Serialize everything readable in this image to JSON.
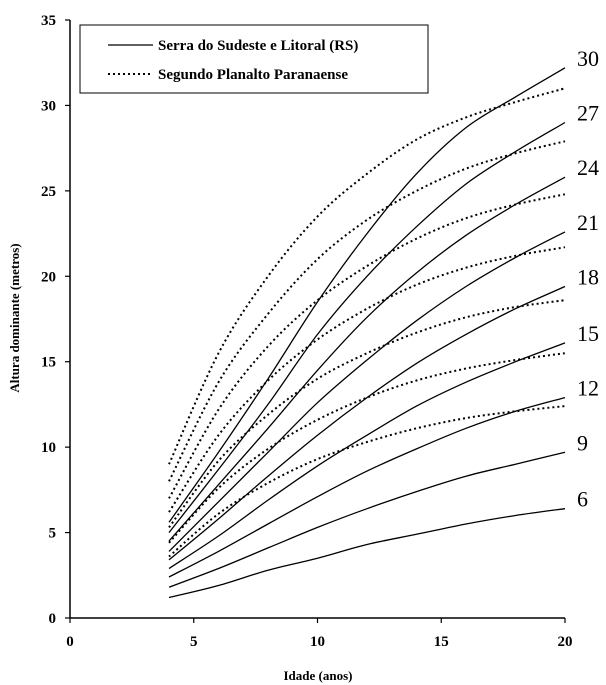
{
  "chart_data": {
    "type": "line",
    "xlabel": "Idade (anos)",
    "ylabel": "Altura dominante (metros)",
    "xlim": [
      0,
      20
    ],
    "ylim": [
      0,
      35
    ],
    "xticks": [
      0,
      5,
      10,
      15,
      20
    ],
    "yticks": [
      0,
      5,
      10,
      15,
      20,
      25,
      30,
      35
    ],
    "grid": false,
    "legend_position": "top-left",
    "legend": [
      {
        "label": "Serra do Sudeste e Litoral (RS)",
        "style": "solid"
      },
      {
        "label": "Segundo Planalto Paranaense",
        "style": "dotted"
      }
    ],
    "site_index_labels": [
      "30",
      "27",
      "24",
      "21",
      "18",
      "15",
      "12",
      "9",
      "6"
    ],
    "x": [
      4,
      6,
      8,
      10,
      12,
      14,
      16,
      18,
      20
    ],
    "series": [
      {
        "group": "Serra do Sudeste e Litoral (RS)",
        "site_index": "30",
        "style": "solid",
        "values": [
          5.6,
          9.7,
          14.0,
          18.5,
          22.5,
          26.0,
          28.7,
          30.5,
          32.2
        ]
      },
      {
        "group": "Serra do Sudeste e Litoral (RS)",
        "site_index": "27",
        "style": "solid",
        "values": [
          5.0,
          8.7,
          12.5,
          16.6,
          20.0,
          22.9,
          25.4,
          27.3,
          29.0
        ]
      },
      {
        "group": "Serra do Sudeste e Litoral (RS)",
        "site_index": "24",
        "style": "solid",
        "values": [
          4.5,
          7.8,
          11.1,
          14.5,
          17.6,
          20.2,
          22.4,
          24.2,
          25.8
        ]
      },
      {
        "group": "Serra do Sudeste e Litoral (RS)",
        "site_index": "21",
        "style": "solid",
        "values": [
          3.9,
          6.8,
          9.7,
          12.6,
          15.1,
          17.4,
          19.4,
          21.1,
          22.6
        ]
      },
      {
        "group": "Serra do Sudeste e Litoral (RS)",
        "site_index": "18",
        "style": "solid",
        "values": [
          3.4,
          5.8,
          8.3,
          10.7,
          12.9,
          14.9,
          16.6,
          18.1,
          19.4
        ]
      },
      {
        "group": "Serra do Sudeste e Litoral (RS)",
        "site_index": "15",
        "style": "solid",
        "values": [
          2.9,
          4.8,
          6.9,
          8.9,
          10.7,
          12.4,
          13.8,
          15.0,
          16.1
        ]
      },
      {
        "group": "Serra do Sudeste e Litoral (RS)",
        "site_index": "12",
        "style": "solid",
        "values": [
          2.4,
          3.9,
          5.5,
          7.1,
          8.6,
          9.9,
          11.1,
          12.1,
          12.9
        ]
      },
      {
        "group": "Serra do Sudeste e Litoral (RS)",
        "site_index": "9",
        "style": "solid",
        "values": [
          1.8,
          2.9,
          4.1,
          5.3,
          6.4,
          7.4,
          8.3,
          9.0,
          9.7
        ]
      },
      {
        "group": "Serra do Sudeste e Litoral (RS)",
        "site_index": "6",
        "style": "solid",
        "values": [
          1.2,
          1.9,
          2.8,
          3.5,
          4.3,
          4.9,
          5.5,
          6.0,
          6.4
        ]
      },
      {
        "group": "Segundo Planalto Paranaense",
        "site_index": "30",
        "style": "dotted",
        "values": [
          9.0,
          15.5,
          20.0,
          23.5,
          26.0,
          28.0,
          29.3,
          30.2,
          31.0
        ]
      },
      {
        "group": "Segundo Planalto Paranaense",
        "site_index": "27",
        "style": "dotted",
        "values": [
          8.0,
          13.8,
          17.8,
          21.0,
          23.3,
          25.0,
          26.3,
          27.2,
          27.9
        ]
      },
      {
        "group": "Segundo Planalto Paranaense",
        "site_index": "24",
        "style": "dotted",
        "values": [
          7.0,
          12.2,
          15.9,
          18.6,
          20.6,
          22.2,
          23.4,
          24.2,
          24.8
        ]
      },
      {
        "group": "Segundo Planalto Paranaense",
        "site_index": "21",
        "style": "dotted",
        "values": [
          6.2,
          10.7,
          13.9,
          16.3,
          18.1,
          19.5,
          20.5,
          21.2,
          21.7
        ]
      },
      {
        "group": "Segundo Planalto Paranaense",
        "site_index": "18",
        "style": "dotted",
        "values": [
          5.3,
          9.2,
          11.9,
          14.0,
          15.5,
          16.7,
          17.6,
          18.2,
          18.6
        ]
      },
      {
        "group": "Segundo Planalto Paranaense",
        "site_index": "15",
        "style": "dotted",
        "values": [
          4.4,
          7.6,
          9.9,
          11.6,
          12.9,
          13.9,
          14.6,
          15.1,
          15.5
        ]
      },
      {
        "group": "Segundo Planalto Paranaense",
        "site_index": "12",
        "style": "dotted",
        "values": [
          3.6,
          6.1,
          7.9,
          9.3,
          10.3,
          11.1,
          11.7,
          12.1,
          12.4
        ]
      }
    ]
  }
}
